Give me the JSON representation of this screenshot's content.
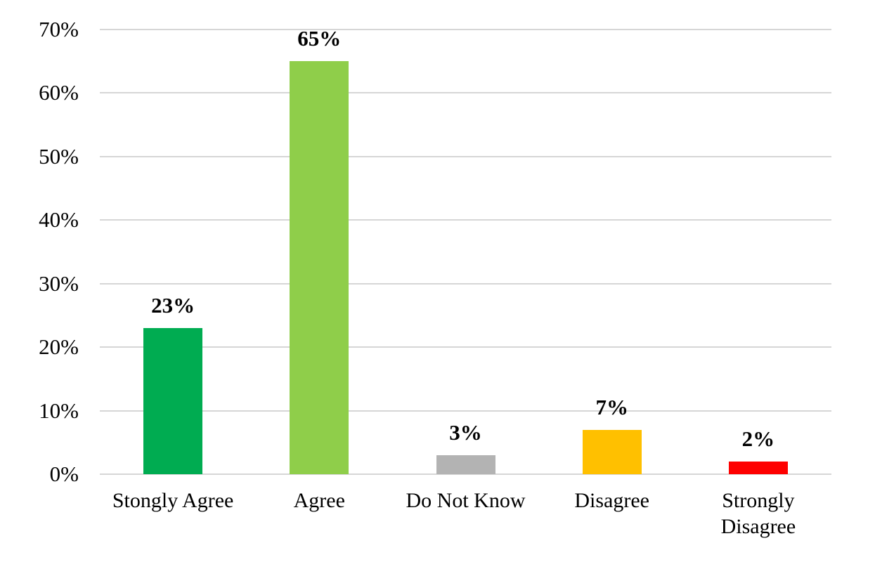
{
  "chart_data": {
    "type": "bar",
    "title": "",
    "xlabel": "",
    "ylabel": "",
    "categories": [
      "Stongly Agree",
      "Agree",
      "Do Not Know",
      "Disagree",
      "Strongly Disagree"
    ],
    "values": [
      23,
      65,
      3,
      7,
      2
    ],
    "value_labels": [
      "23%",
      "65%",
      "3%",
      "7%",
      "2%"
    ],
    "bar_colors": [
      "#00AC51",
      "#8FCE4A",
      "#B3B3B3",
      "#FFC000",
      "#FE0000"
    ],
    "ylim": [
      0,
      70
    ],
    "ytick_step": 10,
    "ytick_labels": [
      "0%",
      "10%",
      "20%",
      "30%",
      "40%",
      "50%",
      "60%",
      "70%"
    ],
    "grid": true,
    "gridline_color": "#d6d6d6",
    "text_color": "#000000",
    "legend_position": "none"
  }
}
